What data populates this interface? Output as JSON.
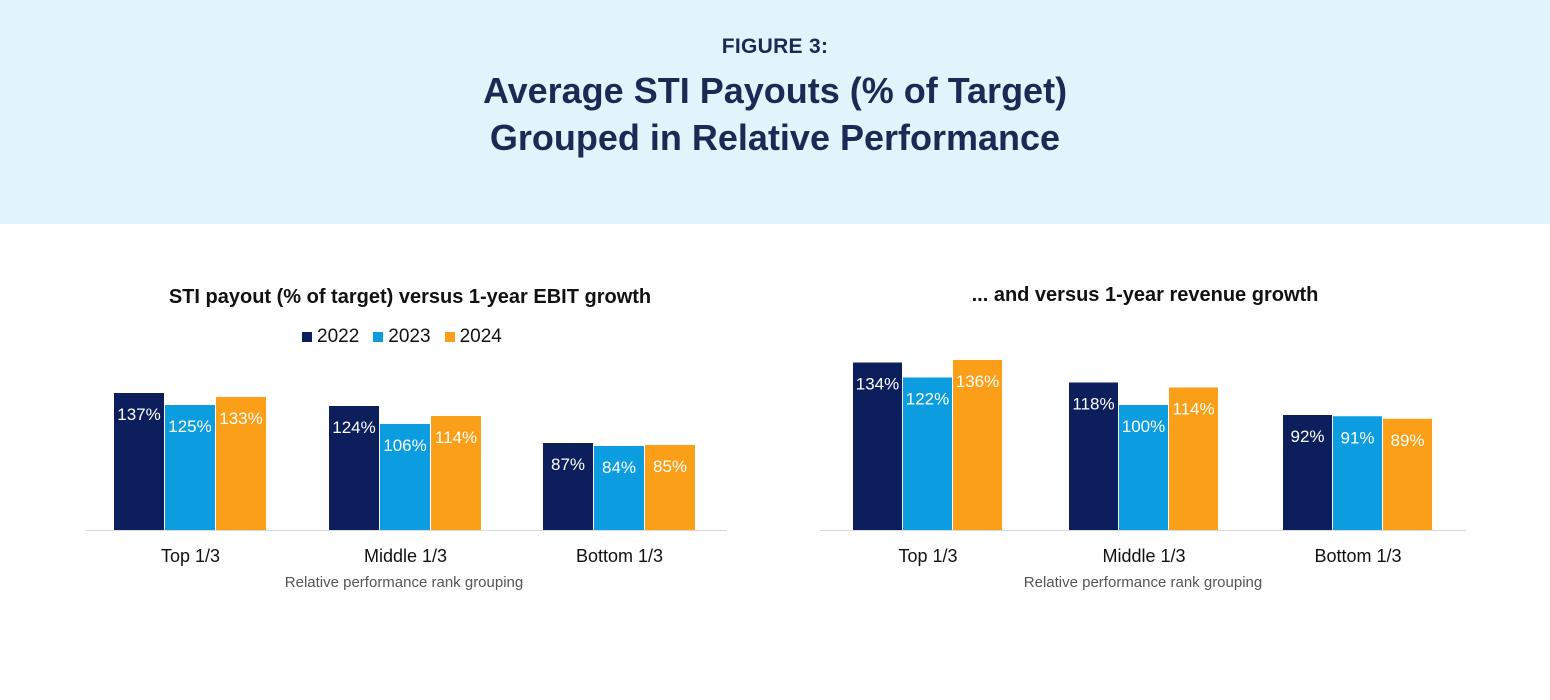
{
  "figure_label": "FIGURE 3:",
  "figure_title_line1": "Average STI Payouts (% of Target)",
  "figure_title_line2": "Grouped in Relative Performance",
  "colors": {
    "2022": "#0c1f5c",
    "2023": "#0b9de0",
    "2024": "#fb9f18",
    "header_bg": "#e1f4fb"
  },
  "legend": {
    "series": [
      "2022",
      "2023",
      "2024"
    ]
  },
  "chart_data": [
    {
      "type": "bar",
      "title": "STI payout (% of target) versus 1-year EBIT growth",
      "categories": [
        "Top 1/3",
        "Middle 1/3",
        "Bottom 1/3"
      ],
      "series": [
        {
          "name": "2022",
          "values": [
            137,
            124,
            87
          ],
          "labels": [
            "137%",
            "124%",
            "87%"
          ]
        },
        {
          "name": "2023",
          "values": [
            125,
            106,
            84
          ],
          "labels": [
            "125%",
            "106%",
            "84%"
          ]
        },
        {
          "name": "2024",
          "values": [
            133,
            114,
            85
          ],
          "labels": [
            "133%",
            "114%",
            "85%"
          ]
        }
      ],
      "xlabel": "Relative performance rank grouping",
      "ylabel": "",
      "ylim": [
        0,
        140
      ]
    },
    {
      "type": "bar",
      "title": "... and versus 1-year revenue growth",
      "categories": [
        "Top 1/3",
        "Middle 1/3",
        "Bottom 1/3"
      ],
      "series": [
        {
          "name": "2022",
          "values": [
            134,
            118,
            92
          ],
          "labels": [
            "134%",
            "118%",
            "92%"
          ]
        },
        {
          "name": "2023",
          "values": [
            122,
            100,
            91
          ],
          "labels": [
            "122%",
            "100%",
            "91%"
          ]
        },
        {
          "name": "2024",
          "values": [
            136,
            114,
            89
          ],
          "labels": [
            "136%",
            "114%",
            "89%"
          ]
        }
      ],
      "xlabel": "Relative performance rank grouping",
      "ylabel": "",
      "ylim": [
        0,
        140
      ]
    }
  ]
}
